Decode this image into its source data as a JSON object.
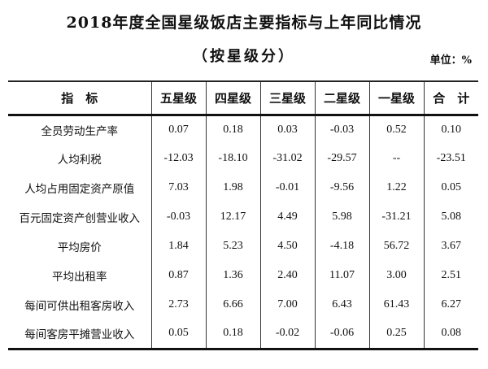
{
  "page": {
    "title": "2018年度全国星级饭店主要指标与上年同比情况",
    "subtitle": "（按星级分）",
    "unit_label": "单位：%"
  },
  "colors": {
    "background": "#ffffff",
    "text": "#111111",
    "table_border": "#222222"
  },
  "table": {
    "headers": [
      "指　标",
      "五星级",
      "四星级",
      "三星级",
      "二星级",
      "一星级",
      "合　计"
    ],
    "rows": [
      {
        "label": "全员劳动生产率",
        "values": [
          "0.07",
          "0.18",
          "0.03",
          "-0.03",
          "0.52",
          "0.10"
        ]
      },
      {
        "label": "人均利税",
        "values": [
          "-12.03",
          "-18.10",
          "-31.02",
          "-29.57",
          "--",
          "-23.51"
        ]
      },
      {
        "label": "人均占用固定资产原值",
        "values": [
          "7.03",
          "1.98",
          "-0.01",
          "-9.56",
          "1.22",
          "0.05"
        ]
      },
      {
        "label": "百元固定资产创营业收入",
        "values": [
          "-0.03",
          "12.17",
          "4.49",
          "5.98",
          "-31.21",
          "5.08"
        ]
      },
      {
        "label": "平均房价",
        "values": [
          "1.84",
          "5.23",
          "4.50",
          "-4.18",
          "56.72",
          "3.67"
        ]
      },
      {
        "label": "平均出租率",
        "values": [
          "0.87",
          "1.36",
          "2.40",
          "11.07",
          "3.00",
          "2.51"
        ]
      },
      {
        "label": "每间可供出租客房收入",
        "values": [
          "2.73",
          "6.66",
          "7.00",
          "6.43",
          "61.43",
          "6.27"
        ]
      },
      {
        "label": "每间客房平摊营业收入",
        "values": [
          "0.05",
          "0.18",
          "-0.02",
          "-0.06",
          "0.25",
          "0.08"
        ]
      }
    ]
  }
}
